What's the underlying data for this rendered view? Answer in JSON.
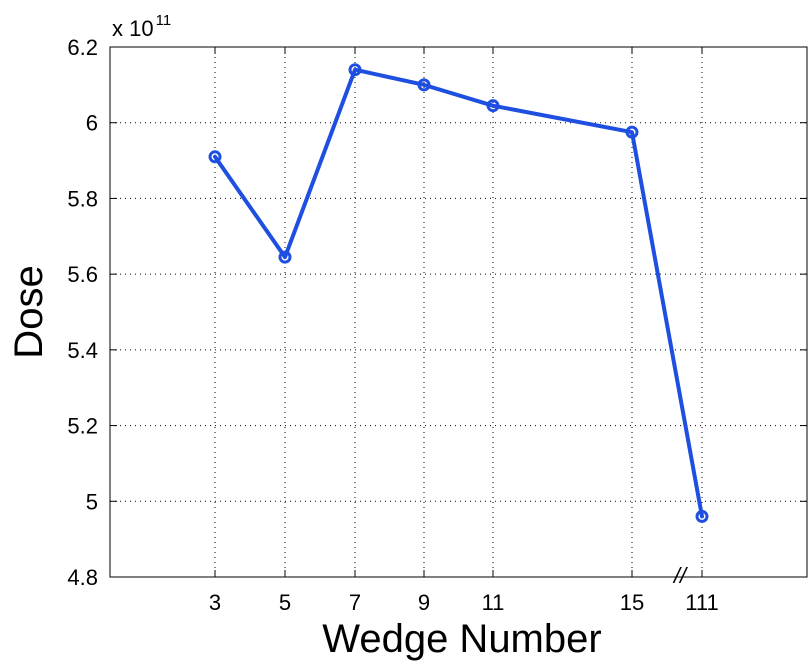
{
  "chart_data": {
    "type": "line",
    "xlabel": "Wedge Number",
    "ylabel": "Dose",
    "y_exponent_base": "x 10",
    "y_exponent_power": "11",
    "ylim": [
      4.8,
      6.2
    ],
    "yticks": [
      "4.8",
      "5",
      "5.2",
      "5.4",
      "5.6",
      "5.8",
      "6",
      "6.2"
    ],
    "xtick_labels": [
      "3",
      "5",
      "7",
      "9",
      "11",
      "15",
      "111"
    ],
    "axis_break_symbol": "//",
    "grid": true,
    "series": [
      {
        "color": "#1f4fe0",
        "marker": "circle",
        "x": [
          "3",
          "5",
          "7",
          "9",
          "11",
          "15",
          "111"
        ],
        "values": [
          5.91,
          5.645,
          6.14,
          6.1,
          6.045,
          5.975,
          4.96
        ]
      }
    ]
  }
}
